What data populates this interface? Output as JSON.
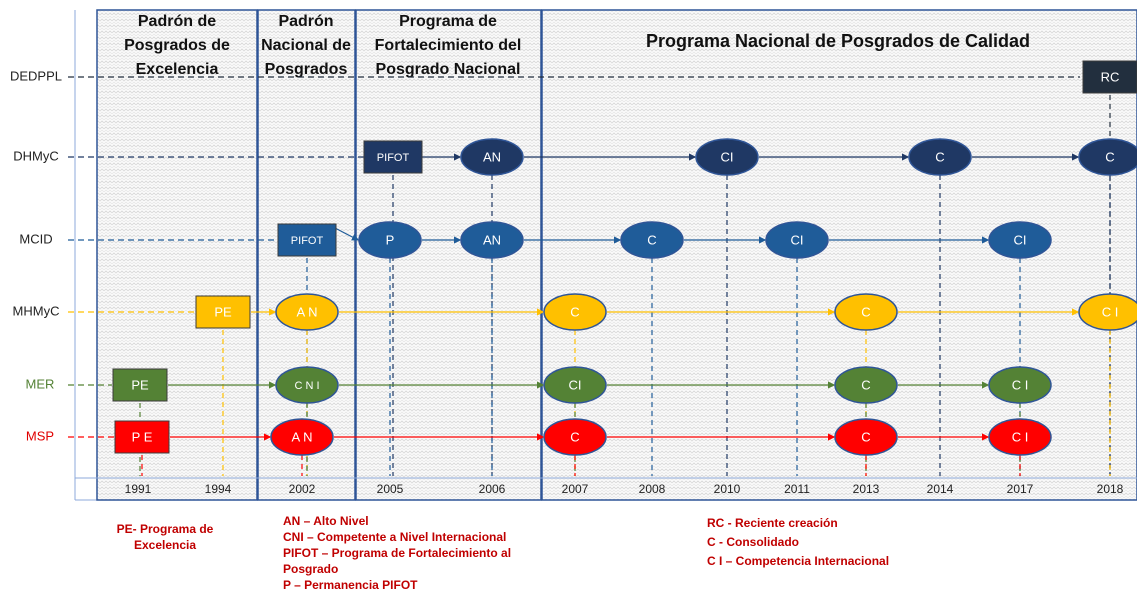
{
  "headers": [
    {
      "lines": [
        "Padrón de",
        "Posgrados de",
        "Excelencia"
      ]
    },
    {
      "lines": [
        "Padrón",
        "Nacional de",
        "Posgrados"
      ]
    },
    {
      "lines": [
        "Programa de",
        "Fortalecimiento del",
        "Posgrado Nacional"
      ]
    },
    {
      "lines": [
        "Programa Nacional de Posgrados de Calidad"
      ]
    }
  ],
  "years": [
    "1991",
    "1994",
    "2002",
    "2005",
    "2006",
    "2007",
    "2008",
    "2010",
    "2011",
    "2013",
    "2014",
    "2017",
    "2018"
  ],
  "rows": [
    {
      "label": "DEDPPL",
      "label_color": "#222222",
      "color": "#222f3e",
      "nodes": [
        {
          "label": "RC",
          "shape": "rect"
        }
      ]
    },
    {
      "label": "DHMyC",
      "label_color": "#222222",
      "color": "#1f3864",
      "nodes": [
        {
          "label": "PIFOT",
          "shape": "rect"
        },
        {
          "label": "AN",
          "shape": "ellipse"
        },
        {
          "label": "CI",
          "shape": "ellipse"
        },
        {
          "label": "C",
          "shape": "ellipse"
        },
        {
          "label": "C",
          "shape": "ellipse"
        }
      ]
    },
    {
      "label": "MCID",
      "label_color": "#222222",
      "color": "#1f5c99",
      "nodes": [
        {
          "label": "PIFOT",
          "shape": "rect"
        },
        {
          "label": "P",
          "shape": "ellipse"
        },
        {
          "label": "AN",
          "shape": "ellipse"
        },
        {
          "label": "C",
          "shape": "ellipse"
        },
        {
          "label": "CI",
          "shape": "ellipse"
        },
        {
          "label": "CI",
          "shape": "ellipse"
        }
      ]
    },
    {
      "label": "MHMyC",
      "label_color": "#222222",
      "color": "#ffc000",
      "nodes": [
        {
          "label": "PE",
          "shape": "rect"
        },
        {
          "label": "A N",
          "shape": "ellipse"
        },
        {
          "label": "C",
          "shape": "ellipse"
        },
        {
          "label": "C",
          "shape": "ellipse"
        },
        {
          "label": "C I",
          "shape": "ellipse"
        }
      ]
    },
    {
      "label": "MER",
      "label_color": "#548235",
      "color": "#548235",
      "nodes": [
        {
          "label": "PE",
          "shape": "rect"
        },
        {
          "label": "C N I",
          "shape": "ellipse"
        },
        {
          "label": "CI",
          "shape": "ellipse"
        },
        {
          "label": "C",
          "shape": "ellipse"
        },
        {
          "label": "C I",
          "shape": "ellipse"
        }
      ]
    },
    {
      "label": "MSP",
      "label_color": "#e00000",
      "color": "#ff0000",
      "nodes": [
        {
          "label": "P E",
          "shape": "rect"
        },
        {
          "label": "A N",
          "shape": "ellipse"
        },
        {
          "label": "C",
          "shape": "ellipse"
        },
        {
          "label": "C",
          "shape": "ellipse"
        },
        {
          "label": "C I",
          "shape": "ellipse"
        }
      ]
    }
  ],
  "legend": [
    {
      "lines": [
        "PE- Programa de",
        "Excelencia"
      ]
    },
    {
      "lines": [
        "AN – Alto Nivel",
        "CNI – Competente a Nivel Internacional",
        "PIFOT – Programa de Fortalecimiento al",
        "Posgrado",
        "P – Permanencia PIFOT"
      ]
    },
    {
      "lines": [
        "RC - Reciente creación",
        "C - Consolidado",
        "C I – Competencia Internacional"
      ]
    }
  ]
}
